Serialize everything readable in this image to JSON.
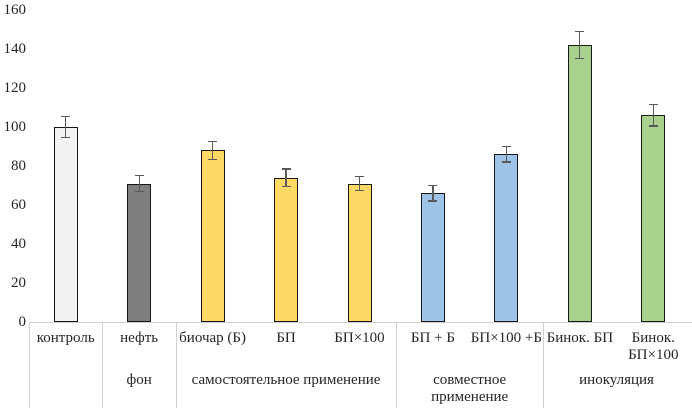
{
  "chart_data": {
    "type": "bar",
    "title": "",
    "xlabel": "",
    "ylabel": "",
    "grid": false,
    "legend": "none",
    "background": "#ffffff",
    "text_color": "#262626",
    "axis_line_color": "#d0cece",
    "bar_border_color": "#161616",
    "error_bar_color": "#595959",
    "y_axis": {
      "min": 0,
      "max": 160,
      "step": 20,
      "ticks": [
        "0",
        "20",
        "40",
        "60",
        "80",
        "100",
        "120",
        "140",
        "160"
      ]
    },
    "categories": [
      "контроль",
      "нефть",
      "биочар (Б)",
      "БП",
      "БП×100",
      "БП + Б",
      "БП×100 +Б",
      "Бинок. БП",
      "Бинок.\nБП×100"
    ],
    "values": [
      100,
      71,
      88,
      74,
      71,
      66,
      86,
      142,
      106
    ],
    "errors": [
      5.5,
      4,
      4.5,
      4.5,
      3.5,
      4,
      4,
      7,
      5.5
    ],
    "bar_colors": [
      "#f2f2f2",
      "#7f7f7f",
      "#ffd966",
      "#ffd966",
      "#ffd966",
      "#9dc3e6",
      "#9dc3e6",
      "#a9d18e",
      "#a9d18e"
    ],
    "groups": [
      {
        "label": "",
        "span": 1
      },
      {
        "label": "фон",
        "span": 1
      },
      {
        "label": "самостоятельное применение",
        "span": 3
      },
      {
        "label": "совместное применение",
        "span": 2
      },
      {
        "label": "инокуляция",
        "span": 2
      }
    ]
  }
}
